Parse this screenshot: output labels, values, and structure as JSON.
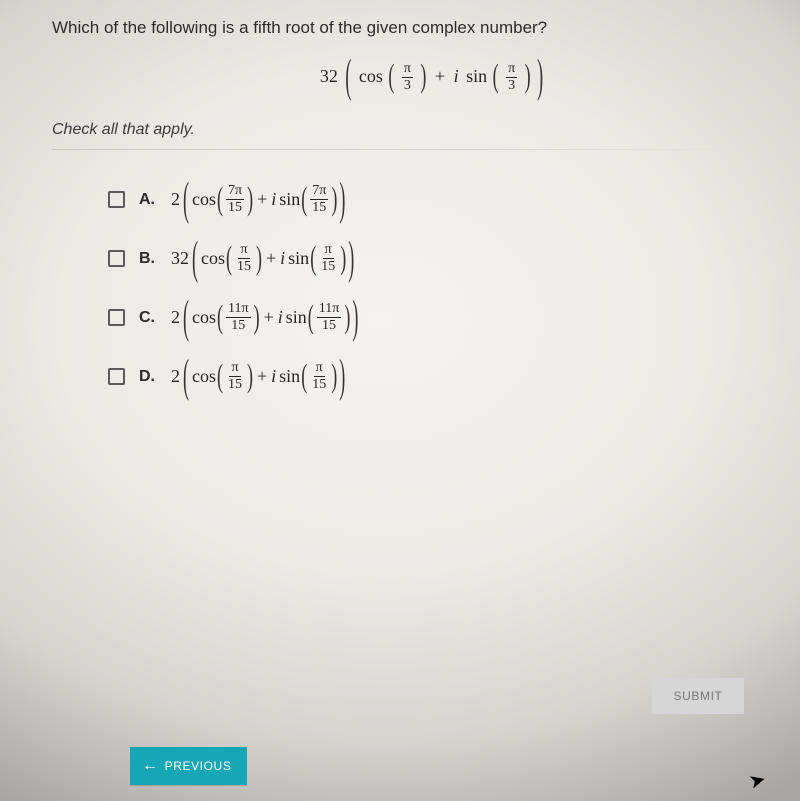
{
  "question": "Which of the following is a fifth root of the given complex number?",
  "given": {
    "coef": "32",
    "num": "π",
    "den": "3"
  },
  "instruction": "Check all that apply.",
  "options": [
    {
      "letter": "A.",
      "coef": "2",
      "num": "7π",
      "den": "15"
    },
    {
      "letter": "B.",
      "coef": "32",
      "num": "π",
      "den": "15"
    },
    {
      "letter": "C.",
      "coef": "2",
      "num": "11π",
      "den": "15"
    },
    {
      "letter": "D.",
      "coef": "2",
      "num": "π",
      "den": "15"
    }
  ],
  "buttons": {
    "submit": "SUBMIT",
    "previous": "PREVIOUS"
  },
  "colors": {
    "accent": "#17a6b6",
    "submit_bg": "#d6d6d6",
    "submit_fg": "#777777"
  }
}
